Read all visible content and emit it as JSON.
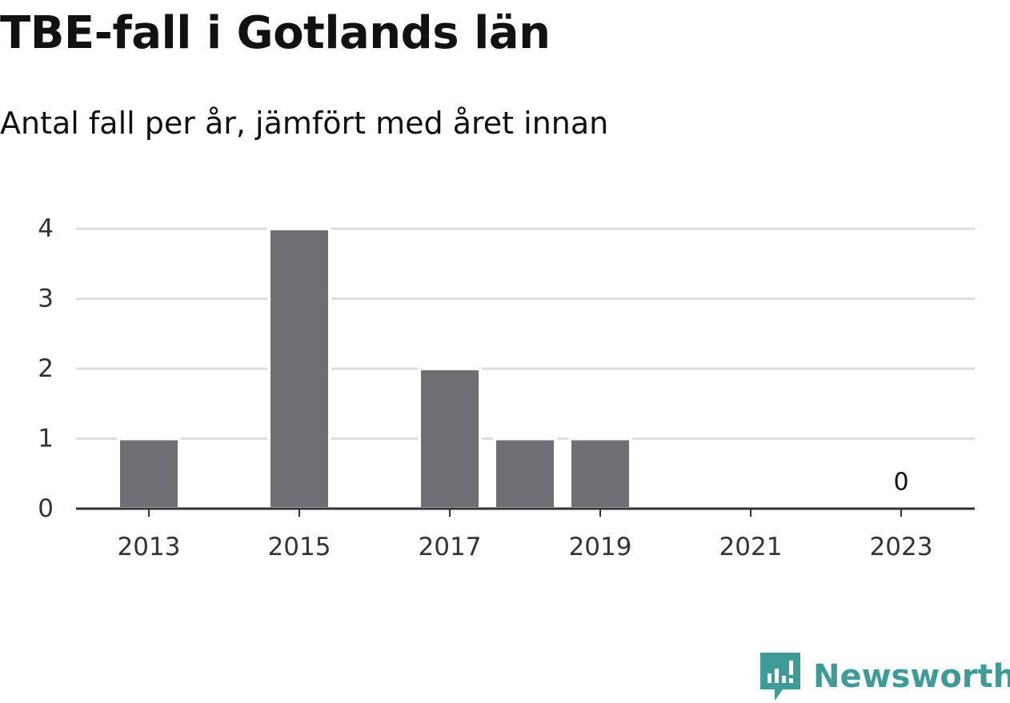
{
  "title": "TBE-fall i Gotlands län",
  "subtitle": "Antal fall per år, jämfört med året innan",
  "brand": {
    "name": "Newsworthy",
    "color": "#3f9b98"
  },
  "chart_data": {
    "type": "bar",
    "title": "TBE-fall i Gotlands län",
    "subtitle": "Antal fall per år, jämfört med året innan",
    "x": [
      2013,
      2014,
      2015,
      2016,
      2017,
      2018,
      2019,
      2020,
      2021,
      2022,
      2023
    ],
    "values": [
      1,
      0,
      4,
      0,
      2,
      1,
      1,
      0,
      0,
      0,
      0
    ],
    "x_ticks": [
      "2013",
      "2015",
      "2017",
      "2019",
      "2021",
      "2023"
    ],
    "y_ticks": [
      0,
      1,
      2,
      3,
      4
    ],
    "ylim": [
      0,
      4
    ],
    "xlabel": "",
    "ylabel": "",
    "grid": true,
    "bar_color": "#6f6e73",
    "annotations": [
      {
        "x": 2023,
        "label": "0"
      }
    ]
  }
}
